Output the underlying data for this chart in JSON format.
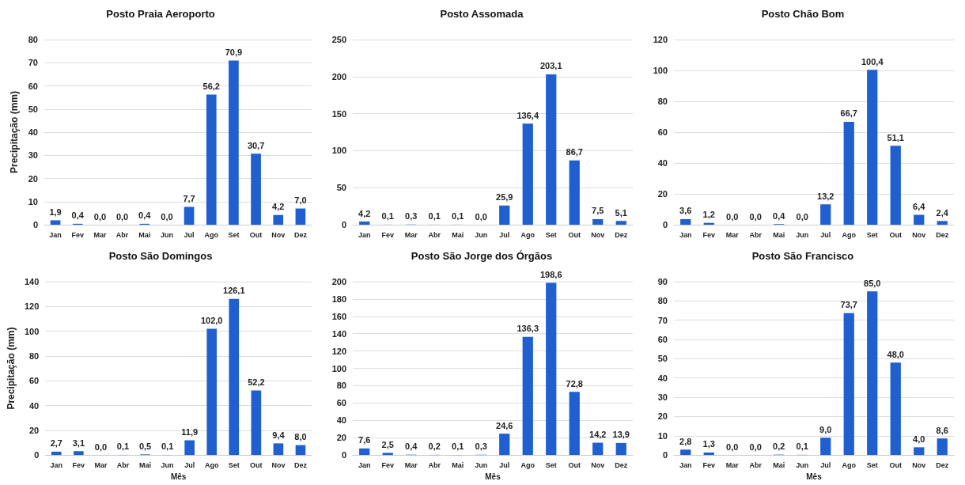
{
  "chart_data": [
    {
      "type": "bar",
      "title": "Posto Praia Aeroporto",
      "ylabel": "Precipitação (mm)",
      "categories": [
        "Jan",
        "Fev",
        "Mar",
        "Abr",
        "Mai",
        "Jun",
        "Jul",
        "Ago",
        "Set",
        "Out",
        "Nov",
        "Dez"
      ],
      "values": [
        1.9,
        0.4,
        0,
        0,
        0.4,
        0,
        7.7,
        56.2,
        70.9,
        30.7,
        4.2,
        7.0
      ],
      "value_labels": [
        "1,9",
        "0,4",
        "0,0",
        "0,0",
        "0,4",
        "0,0",
        "7,7",
        "56,2",
        "70,9",
        "30,7",
        "4,2",
        "7,0"
      ],
      "color": "#1f5fd0",
      "ylim": [
        0,
        80
      ],
      "yticks": [
        0,
        10,
        20,
        30,
        40,
        50,
        60,
        70,
        80
      ],
      "grid": "y"
    },
    {
      "type": "bar",
      "title": "Posto Assomada",
      "categories": [
        "Jan",
        "Fev",
        "Mar",
        "Abr",
        "Mai",
        "Jun",
        "Jul",
        "Ago",
        "Set",
        "Out",
        "Nov",
        "Dez"
      ],
      "values": [
        4.2,
        0.1,
        0.3,
        0.1,
        0.1,
        0,
        25.9,
        136.4,
        203.1,
        86.7,
        7.5,
        5.1
      ],
      "value_labels": [
        "4,2",
        "0,1",
        "0,3",
        "0,1",
        "0,1",
        "0,0",
        "25,9",
        "136,4",
        "203,1",
        "86,7",
        "7,5",
        "5,1"
      ],
      "color": "#1f5fd0",
      "ylim": [
        0,
        250
      ],
      "yticks": [
        0,
        50,
        100,
        150,
        200,
        250
      ],
      "grid": "y"
    },
    {
      "type": "bar",
      "title": "Posto Chão Bom",
      "categories": [
        "Jan",
        "Fev",
        "Mar",
        "Abr",
        "Mai",
        "Jun",
        "Jul",
        "Ago",
        "Set",
        "Out",
        "Nov",
        "Dez"
      ],
      "values": [
        3.6,
        1.2,
        0,
        0,
        0.4,
        0,
        13.2,
        66.7,
        100.4,
        51.1,
        6.4,
        2.4
      ],
      "value_labels": [
        "3,6",
        "1,2",
        "0,0",
        "0,0",
        "0,4",
        "0,0",
        "13,2",
        "66,7",
        "100,4",
        "51,1",
        "6,4",
        "2,4"
      ],
      "color": "#1f5fd0",
      "ylim": [
        0,
        120
      ],
      "yticks": [
        0,
        20,
        40,
        60,
        80,
        100,
        120
      ],
      "grid": "y"
    },
    {
      "type": "bar",
      "title": "Posto São Domingos",
      "xlabel": "Mês",
      "ylabel": "Precipitação (mm)",
      "categories": [
        "Jan",
        "Fev",
        "Mar",
        "Abr",
        "Mai",
        "Jun",
        "Jul",
        "Ago",
        "Set",
        "Out",
        "Nov",
        "Dez"
      ],
      "values": [
        2.7,
        3.1,
        0,
        0.1,
        0.5,
        0.1,
        11.9,
        102.0,
        126.1,
        52.2,
        9.4,
        8.0
      ],
      "value_labels": [
        "2,7",
        "3,1",
        "0,0",
        "0,1",
        "0,5",
        "0,1",
        "11,9",
        "102,0",
        "126,1",
        "52,2",
        "9,4",
        "8,0"
      ],
      "color": "#1f5fd0",
      "ylim": [
        0,
        140
      ],
      "yticks": [
        0,
        20,
        40,
        60,
        80,
        100,
        120,
        140
      ],
      "grid": "y"
    },
    {
      "type": "bar",
      "title": "Posto São Jorge dos Órgãos",
      "xlabel": "Mês",
      "categories": [
        "Jan",
        "Fev",
        "Mar",
        "Abr",
        "Mai",
        "Jun",
        "Jul",
        "Ago",
        "Set",
        "Out",
        "Nov",
        "Dez"
      ],
      "values": [
        7.6,
        2.5,
        0.4,
        0.2,
        0.1,
        0.3,
        24.6,
        136.3,
        198.6,
        72.8,
        14.2,
        13.9
      ],
      "value_labels": [
        "7,6",
        "2,5",
        "0,4",
        "0,2",
        "0,1",
        "0,3",
        "24,6",
        "136,3",
        "198,6",
        "72,8",
        "14,2",
        "13,9"
      ],
      "color": "#1f5fd0",
      "ylim": [
        0,
        200
      ],
      "yticks": [
        0,
        20,
        40,
        60,
        80,
        100,
        120,
        140,
        160,
        180,
        200
      ],
      "grid": "y"
    },
    {
      "type": "bar",
      "title": "Posto São Francisco",
      "xlabel": "Mês",
      "categories": [
        "Jan",
        "Fev",
        "Mar",
        "Abr",
        "Mai",
        "Jun",
        "Jul",
        "Ago",
        "Set",
        "Out",
        "Nov",
        "Dez"
      ],
      "values": [
        2.8,
        1.3,
        0,
        0,
        0.2,
        0.1,
        9.0,
        73.7,
        85.0,
        48.0,
        4.0,
        8.6
      ],
      "value_labels": [
        "2,8",
        "1,3",
        "0,0",
        "0,0",
        "0,2",
        "0,1",
        "9,0",
        "73,7",
        "85,0",
        "48,0",
        "4,0",
        "8,6"
      ],
      "color": "#1f5fd0",
      "ylim": [
        0,
        90
      ],
      "yticks": [
        0,
        10,
        20,
        30,
        40,
        50,
        60,
        70,
        80,
        90
      ],
      "grid": "y"
    }
  ]
}
